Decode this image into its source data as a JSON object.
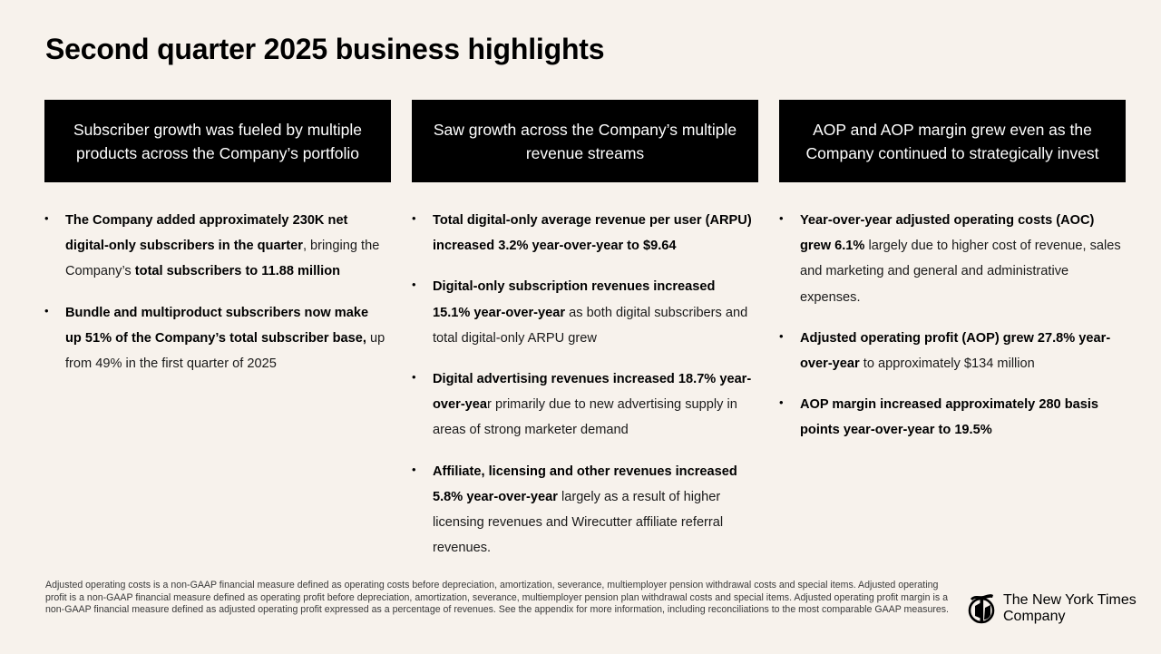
{
  "title": "Second quarter 2025 business highlights",
  "columns": [
    {
      "header": "Subscriber growth was fueled by multiple products across the Company’s portfolio",
      "bullets": [
        [
          {
            "t": "The Company added approximately 230K net digital-only subscribers in the quarter",
            "b": true
          },
          {
            "t": ", bringing the Company’s ",
            "b": false
          },
          {
            "t": "total subscribers to 11.88 million",
            "b": true
          }
        ],
        [
          {
            "t": "Bundle and multiproduct subscribers now make up 51% of the Company’s total subscriber base,",
            "b": true
          },
          {
            "t": " up from 49% in the first quarter of 2025",
            "b": false
          }
        ]
      ]
    },
    {
      "header": "Saw growth across the Company’s multiple revenue streams",
      "bullets": [
        [
          {
            "t": "Total digital-only average revenue per user (ARPU) increased 3.2% year-over-year to $9.64",
            "b": true
          }
        ],
        [
          {
            "t": "Digital-only subscription revenues increased 15.1% year-over-year",
            "b": true
          },
          {
            "t": " as both digital subscribers and total digital-only ARPU grew",
            "b": false
          }
        ],
        [
          {
            "t": "Digital advertising revenues increased 18.7% year-over-yea",
            "b": true
          },
          {
            "t": "r primarily due to new advertising supply in areas of strong marketer demand",
            "b": false
          }
        ],
        [
          {
            "t": "Affiliate, licensing and other revenues increased 5.8% year-over-year",
            "b": true
          },
          {
            "t": " largely as a result of higher licensing revenues and Wirecutter affiliate referral revenues.",
            "b": false
          }
        ]
      ]
    },
    {
      "header": "AOP and AOP margin grew even as the Company continued to strategically invest",
      "bullets": [
        [
          {
            "t": "Year-over-year adjusted operating costs (AOC) grew 6.1%",
            "b": true
          },
          {
            "t": " largely due to higher cost of revenue, sales and marketing and general and administrative expenses.",
            "b": false
          }
        ],
        [
          {
            "t": "Adjusted operating profit (AOP) grew 27.8% year-over-year",
            "b": true
          },
          {
            "t": " to approximately $134 million",
            "b": false
          }
        ],
        [
          {
            "t": "AOP margin increased approximately 280 basis points year-over-year to 19.5%",
            "b": true
          }
        ]
      ]
    }
  ],
  "footnote": "Adjusted operating costs is a non-GAAP financial measure defined as operating costs before depreciation, amortization, severance, multiemployer pension withdrawal costs and special items. Adjusted operating profit is a non-GAAP financial measure defined as operating profit before depreciation, amortization, severance, multiemployer pension plan withdrawal costs and special items. Adjusted operating profit margin is a non-GAAP financial measure defined as adjusted operating profit expressed as a percentage of revenues. See the appendix for more information, including reconciliations to the most comparable GAAP measures.",
  "logo": {
    "line1": "The New York Times",
    "line2": "Company",
    "icon": "nyt-t-logo-icon"
  },
  "colors": {
    "background": "#f7f2ec",
    "header_bg": "#000000",
    "header_text": "#ffffff"
  }
}
